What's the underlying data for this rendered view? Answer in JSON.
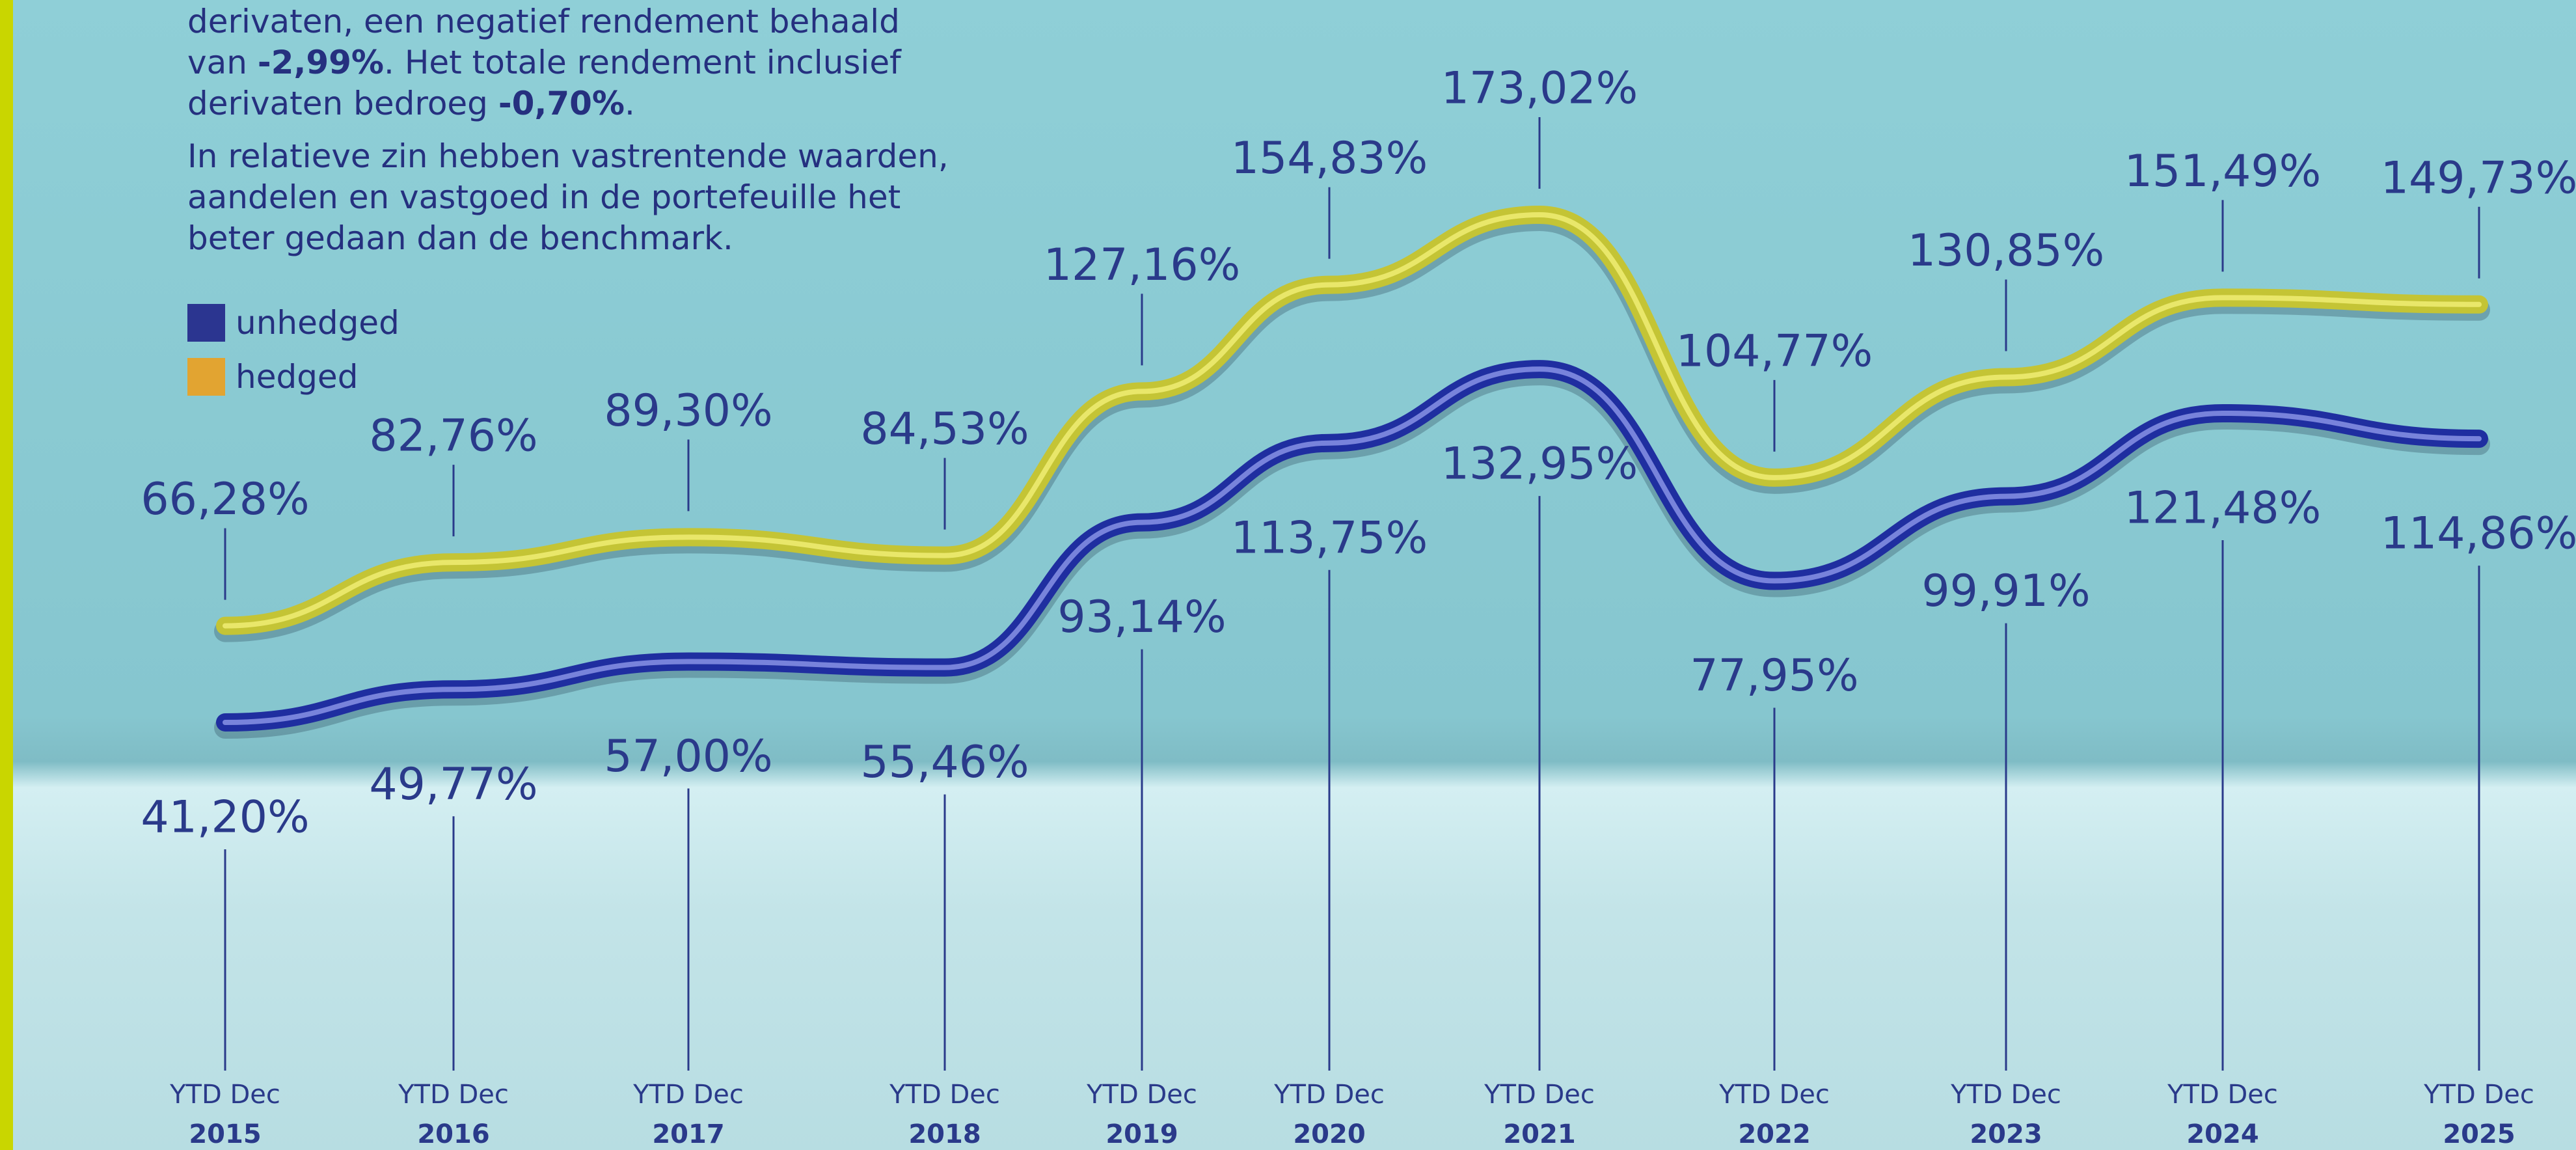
{
  "text": {
    "paragraphs": [
      [
        "derivaten, een negatief rendement behaald van ",
        "-2,99%",
        ". Het totale rendement inclusief derivaten bedroeg ",
        "-0,70%",
        "."
      ],
      [
        "In relatieve zin hebben vastrentende waarden, aandelen en vastgoed in de portefeuille het beter gedaan dan de benchmark."
      ]
    ]
  },
  "chart_data": {
    "type": "line",
    "x_label_prefix": "YTD Dec",
    "categories": [
      "2015",
      "2016",
      "2017",
      "2018",
      "2019",
      "2020",
      "2021",
      "2022",
      "2023",
      "2024",
      "2025"
    ],
    "legend": "upper left",
    "series": [
      {
        "name": "unhedged",
        "color": "#2b3590",
        "line_color": "#1f2ea0",
        "values": [
          41.2,
          49.77,
          57.0,
          55.46,
          93.14,
          113.75,
          132.95,
          77.95,
          99.91,
          121.48,
          114.86
        ],
        "value_labels": [
          "41,20%",
          "49,77%",
          "57,00%",
          "55,46%",
          "93,14%",
          "113,75%",
          "132,95%",
          "77,95%",
          "99,91%",
          "121,48%",
          "114,86%"
        ]
      },
      {
        "name": "hedged",
        "color": "#e2a431",
        "line_color": "#c4c435",
        "values": [
          66.28,
          82.76,
          89.3,
          84.53,
          127.16,
          154.83,
          173.02,
          104.77,
          130.85,
          151.49,
          149.73
        ],
        "value_labels": [
          "66,28%",
          "82,76%",
          "89,30%",
          "84,53%",
          "127,16%",
          "154,83%",
          "173,02%",
          "104,77%",
          "130,85%",
          "151,49%",
          "149,73%"
        ]
      }
    ]
  }
}
